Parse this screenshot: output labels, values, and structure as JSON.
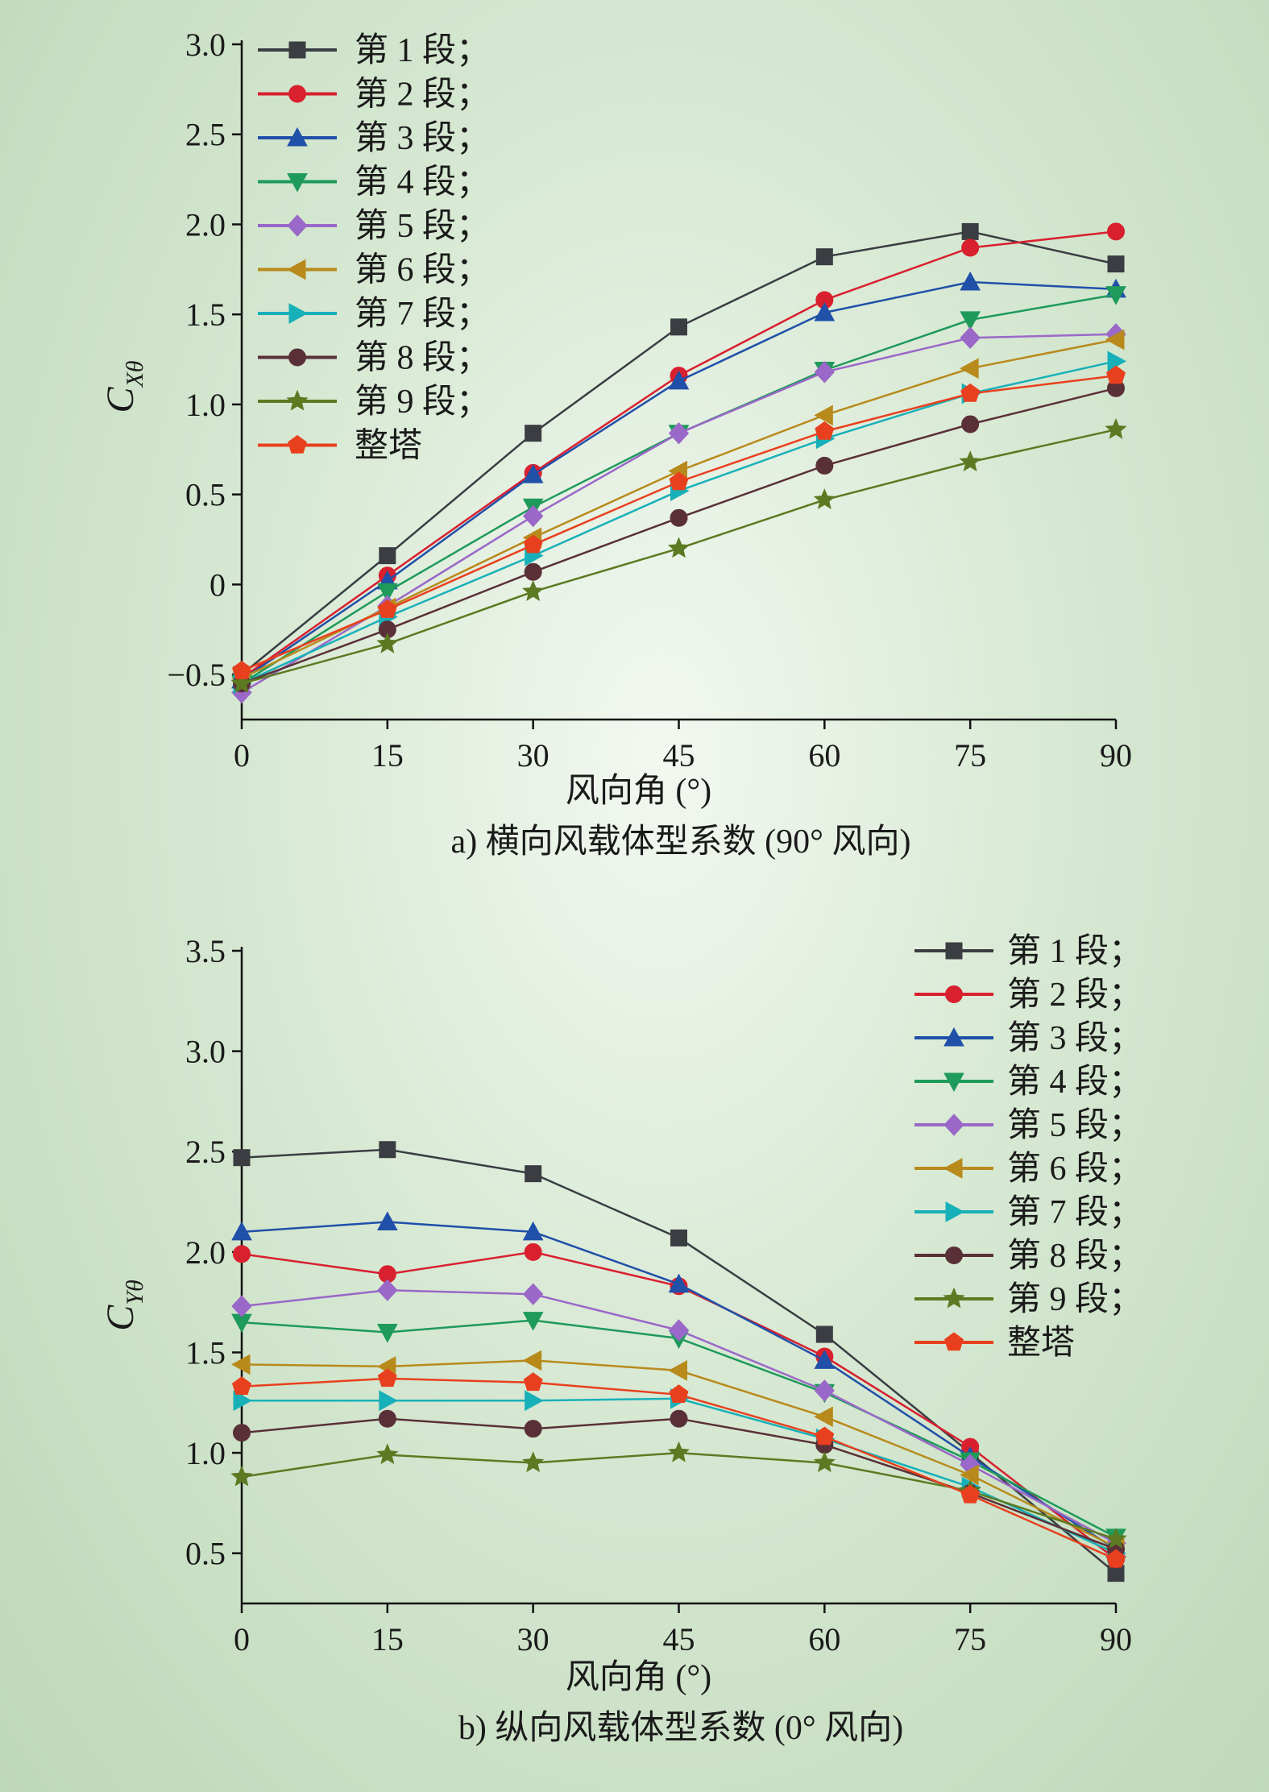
{
  "colors": {
    "background_center": "#f3f8f1",
    "background_edge": "#bdd8b7"
  },
  "chart_data": [
    {
      "type": "line",
      "caption": "a) 横向风载体型系数 (90° 风向)",
      "xlabel": "风向角 (°)",
      "ylabel_main": "C",
      "ylabel_sub": "Xθ",
      "xlim": [
        0,
        90
      ],
      "ylim": [
        -0.75,
        3.0
      ],
      "xticks": [
        "0",
        "15",
        "30",
        "45",
        "60",
        "75",
        "90"
      ],
      "yticks": [
        "3.0",
        "2.5",
        "2.0",
        "1.5",
        "1.0",
        "0.5",
        "0",
        "−0.5"
      ],
      "legend_position": "top-left",
      "x": [
        0,
        15,
        30,
        45,
        60,
        75,
        90
      ],
      "series": [
        {
          "name": "第 1 段；",
          "color": "#3a3d42",
          "marker": "square",
          "values": [
            -0.5,
            0.16,
            0.84,
            1.43,
            1.82,
            1.96,
            1.78
          ]
        },
        {
          "name": "第 2 段；",
          "color": "#d8202f",
          "marker": "circle",
          "values": [
            -0.52,
            0.05,
            0.62,
            1.16,
            1.58,
            1.87,
            1.96
          ]
        },
        {
          "name": "第 3 段；",
          "color": "#2050a8",
          "marker": "triangle-up",
          "values": [
            -0.53,
            0.02,
            0.61,
            1.13,
            1.51,
            1.68,
            1.64
          ]
        },
        {
          "name": "第 4 段；",
          "color": "#1e9a5a",
          "marker": "triangle-down",
          "values": [
            -0.55,
            -0.04,
            0.43,
            0.84,
            1.19,
            1.47,
            1.61
          ]
        },
        {
          "name": "第 5 段；",
          "color": "#9a68c8",
          "marker": "diamond",
          "values": [
            -0.6,
            -0.12,
            0.38,
            0.84,
            1.18,
            1.37,
            1.39
          ]
        },
        {
          "name": "第 6 段；",
          "color": "#b88a1c",
          "marker": "triangle-left",
          "values": [
            -0.52,
            -0.13,
            0.26,
            0.63,
            0.94,
            1.2,
            1.36
          ]
        },
        {
          "name": "第 7 段；",
          "color": "#18b0b8",
          "marker": "triangle-right",
          "values": [
            -0.55,
            -0.18,
            0.16,
            0.52,
            0.81,
            1.06,
            1.24
          ]
        },
        {
          "name": "第 8 段；",
          "color": "#5a3038",
          "marker": "circle",
          "values": [
            -0.55,
            -0.25,
            0.07,
            0.37,
            0.66,
            0.89,
            1.09
          ]
        },
        {
          "name": "第 9 段；",
          "color": "#5c7a22",
          "marker": "star",
          "values": [
            -0.55,
            -0.33,
            -0.04,
            0.2,
            0.47,
            0.68,
            0.86
          ]
        },
        {
          "name": "整塔",
          "color": "#e8401e",
          "marker": "pentagon",
          "values": [
            -0.48,
            -0.14,
            0.22,
            0.57,
            0.85,
            1.06,
            1.16
          ]
        }
      ]
    },
    {
      "type": "line",
      "caption": "b) 纵向风载体型系数 (0° 风向)",
      "xlabel": "风向角 (°)",
      "ylabel_main": "C",
      "ylabel_sub": "Yθ",
      "xlim": [
        0,
        90
      ],
      "ylim": [
        0.25,
        3.5
      ],
      "xticks": [
        "0",
        "15",
        "30",
        "45",
        "60",
        "75",
        "90"
      ],
      "yticks": [
        "3.5",
        "3.0",
        "2.5",
        "2.0",
        "1.5",
        "1.0",
        "0.5"
      ],
      "legend_position": "top-right",
      "x": [
        0,
        15,
        30,
        45,
        60,
        75,
        90
      ],
      "series": [
        {
          "name": "第 1 段；",
          "color": "#3a3d42",
          "marker": "square",
          "values": [
            2.47,
            2.51,
            2.39,
            2.07,
            1.59,
            1.0,
            0.4
          ]
        },
        {
          "name": "第 2 段；",
          "color": "#d8202f",
          "marker": "circle",
          "values": [
            1.99,
            1.89,
            2.0,
            1.83,
            1.48,
            1.03,
            0.47
          ]
        },
        {
          "name": "第 3 段；",
          "color": "#2050a8",
          "marker": "triangle-up",
          "values": [
            2.1,
            2.15,
            2.1,
            1.84,
            1.46,
            0.98,
            0.52
          ]
        },
        {
          "name": "第 4 段；",
          "color": "#1e9a5a",
          "marker": "triangle-down",
          "values": [
            1.65,
            1.6,
            1.66,
            1.57,
            1.3,
            0.96,
            0.58
          ]
        },
        {
          "name": "第 5 段；",
          "color": "#9a68c8",
          "marker": "diamond",
          "values": [
            1.73,
            1.81,
            1.79,
            1.61,
            1.31,
            0.94,
            0.55
          ]
        },
        {
          "name": "第 6 段；",
          "color": "#b88a1c",
          "marker": "triangle-left",
          "values": [
            1.44,
            1.43,
            1.46,
            1.41,
            1.18,
            0.89,
            0.53
          ]
        },
        {
          "name": "第 7 段；",
          "color": "#18b0b8",
          "marker": "triangle-right",
          "values": [
            1.26,
            1.26,
            1.26,
            1.27,
            1.07,
            0.83,
            0.5
          ]
        },
        {
          "name": "第 8 段；",
          "color": "#5a3038",
          "marker": "circle",
          "values": [
            1.1,
            1.17,
            1.12,
            1.17,
            1.04,
            0.8,
            0.52
          ]
        },
        {
          "name": "第 9 段；",
          "color": "#5c7a22",
          "marker": "star",
          "values": [
            0.88,
            0.99,
            0.95,
            1.0,
            0.95,
            0.81,
            0.57
          ]
        },
        {
          "name": "整塔",
          "color": "#e8401e",
          "marker": "pentagon",
          "values": [
            1.33,
            1.37,
            1.35,
            1.29,
            1.08,
            0.79,
            0.47
          ]
        }
      ]
    }
  ]
}
